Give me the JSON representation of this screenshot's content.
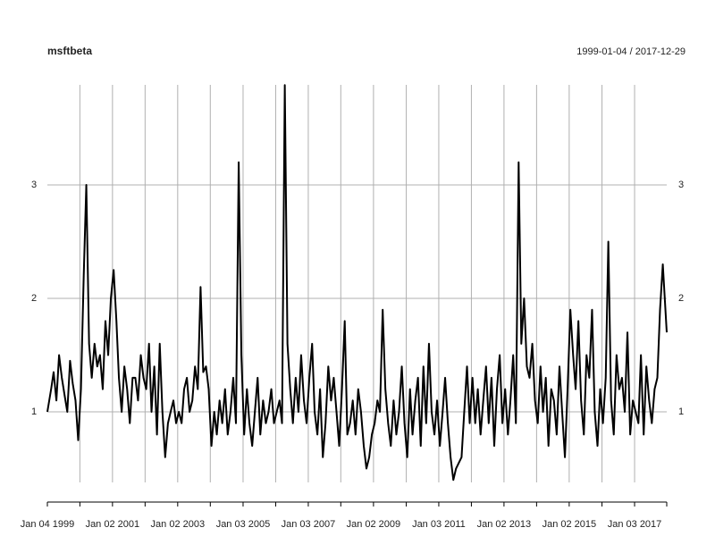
{
  "chart_data": {
    "type": "line",
    "title": "msftbeta",
    "subtitle": "1999-01-04 / 2017-12-29",
    "color": "#000000",
    "grid": true,
    "xlim": [
      "1999-01-04",
      "2017-12-29"
    ],
    "ylim": [
      0.378,
      3.882
    ],
    "yticks": [
      1,
      2,
      3
    ],
    "xticks": [
      {
        "value": "1999-01-04",
        "label": "Jan 04 1999"
      },
      {
        "value": "2000-01-03",
        "label": null
      },
      {
        "value": "2001-01-02",
        "label": "Jan 02 2001"
      },
      {
        "value": "2002-01-02",
        "label": null
      },
      {
        "value": "2003-01-02",
        "label": "Jan 02 2003"
      },
      {
        "value": "2004-01-02",
        "label": null
      },
      {
        "value": "2005-01-03",
        "label": "Jan 03 2005"
      },
      {
        "value": "2006-01-03",
        "label": null
      },
      {
        "value": "2007-01-03",
        "label": "Jan 03 2007"
      },
      {
        "value": "2008-01-02",
        "label": null
      },
      {
        "value": "2009-01-02",
        "label": "Jan 02 2009"
      },
      {
        "value": "2010-01-04",
        "label": null
      },
      {
        "value": "2011-01-03",
        "label": "Jan 03 2011"
      },
      {
        "value": "2012-01-03",
        "label": null
      },
      {
        "value": "2013-01-02",
        "label": "Jan 02 2013"
      },
      {
        "value": "2014-01-02",
        "label": null
      },
      {
        "value": "2015-01-02",
        "label": "Jan 02 2015"
      },
      {
        "value": "2016-01-04",
        "label": null
      },
      {
        "value": "2017-01-03",
        "label": "Jan 03 2017"
      }
    ],
    "x": [
      "1999-01-04",
      "1999-02-15",
      "1999-03-15",
      "1999-04-15",
      "1999-05-15",
      "1999-06-15",
      "1999-07-15",
      "1999-08-15",
      "1999-09-15",
      "1999-10-15",
      "1999-11-15",
      "1999-12-15",
      "2000-01-15",
      "2000-02-15",
      "2000-03-15",
      "2000-04-15",
      "2000-05-15",
      "2000-06-15",
      "2000-07-15",
      "2000-08-15",
      "2000-09-15",
      "2000-10-15",
      "2000-11-15",
      "2000-12-15",
      "2001-01-15",
      "2001-02-15",
      "2001-03-15",
      "2001-04-15",
      "2001-05-15",
      "2001-06-15",
      "2001-07-15",
      "2001-08-15",
      "2001-09-15",
      "2001-10-15",
      "2001-11-15",
      "2001-12-15",
      "2002-01-15",
      "2002-02-15",
      "2002-03-15",
      "2002-04-15",
      "2002-05-15",
      "2002-06-15",
      "2002-07-15",
      "2002-08-15",
      "2002-09-15",
      "2002-10-15",
      "2002-11-15",
      "2002-12-15",
      "2003-01-15",
      "2003-02-15",
      "2003-03-15",
      "2003-04-15",
      "2003-05-15",
      "2003-06-15",
      "2003-07-15",
      "2003-08-15",
      "2003-09-15",
      "2003-10-15",
      "2003-11-15",
      "2003-12-15",
      "2004-01-15",
      "2004-02-15",
      "2004-03-15",
      "2004-04-15",
      "2004-05-15",
      "2004-06-15",
      "2004-07-15",
      "2004-08-15",
      "2004-09-15",
      "2004-10-15",
      "2004-11-15",
      "2004-12-15",
      "2005-01-15",
      "2005-02-15",
      "2005-03-15",
      "2005-04-15",
      "2005-05-15",
      "2005-06-15",
      "2005-07-15",
      "2005-08-15",
      "2005-09-15",
      "2005-10-15",
      "2005-11-15",
      "2005-12-15",
      "2006-01-15",
      "2006-02-15",
      "2006-03-15",
      "2006-04-15",
      "2006-05-15",
      "2006-06-15",
      "2006-07-15",
      "2006-08-15",
      "2006-09-15",
      "2006-10-15",
      "2006-11-15",
      "2006-12-15",
      "2007-01-15",
      "2007-02-15",
      "2007-03-15",
      "2007-04-15",
      "2007-05-15",
      "2007-06-15",
      "2007-07-15",
      "2007-08-15",
      "2007-09-15",
      "2007-10-15",
      "2007-11-15",
      "2007-12-15",
      "2008-01-15",
      "2008-02-15",
      "2008-03-15",
      "2008-04-15",
      "2008-05-15",
      "2008-06-15",
      "2008-07-15",
      "2008-08-15",
      "2008-09-15",
      "2008-10-15",
      "2008-11-15",
      "2008-12-15",
      "2009-01-15",
      "2009-02-15",
      "2009-03-15",
      "2009-04-15",
      "2009-05-15",
      "2009-06-15",
      "2009-07-15",
      "2009-08-15",
      "2009-09-15",
      "2009-10-15",
      "2009-11-15",
      "2009-12-15",
      "2010-01-15",
      "2010-02-15",
      "2010-03-15",
      "2010-04-15",
      "2010-05-15",
      "2010-06-15",
      "2010-07-15",
      "2010-08-15",
      "2010-09-15",
      "2010-10-15",
      "2010-11-15",
      "2010-12-15",
      "2011-01-15",
      "2011-02-15",
      "2011-03-15",
      "2011-04-15",
      "2011-05-15",
      "2011-06-15",
      "2011-07-15",
      "2011-08-15",
      "2011-09-15",
      "2011-10-15",
      "2011-11-15",
      "2011-12-15",
      "2012-01-15",
      "2012-02-15",
      "2012-03-15",
      "2012-04-15",
      "2012-05-15",
      "2012-06-15",
      "2012-07-15",
      "2012-08-15",
      "2012-09-15",
      "2012-10-15",
      "2012-11-15",
      "2012-12-15",
      "2013-01-15",
      "2013-02-15",
      "2013-03-15",
      "2013-04-15",
      "2013-05-15",
      "2013-06-15",
      "2013-07-15",
      "2013-08-15",
      "2013-09-15",
      "2013-10-15",
      "2013-11-15",
      "2013-12-15",
      "2014-01-15",
      "2014-02-15",
      "2014-03-15",
      "2014-04-15",
      "2014-05-15",
      "2014-06-15",
      "2014-07-15",
      "2014-08-15",
      "2014-09-15",
      "2014-10-15",
      "2014-11-15",
      "2014-12-15",
      "2015-01-15",
      "2015-02-15",
      "2015-03-15",
      "2015-04-15",
      "2015-05-15",
      "2015-06-15",
      "2015-07-15",
      "2015-08-15",
      "2015-09-15",
      "2015-10-15",
      "2015-11-15",
      "2015-12-15",
      "2016-01-15",
      "2016-02-15",
      "2016-03-15",
      "2016-04-15",
      "2016-05-15",
      "2016-06-15",
      "2016-07-15",
      "2016-08-15",
      "2016-09-15",
      "2016-10-15",
      "2016-11-15",
      "2016-12-15",
      "2017-01-15",
      "2017-02-15",
      "2017-03-15",
      "2017-04-15",
      "2017-05-15",
      "2017-06-15",
      "2017-07-15",
      "2017-08-15",
      "2017-09-15",
      "2017-10-15",
      "2017-11-15",
      "2017-12-29"
    ],
    "values": [
      1.0,
      1.2,
      1.35,
      1.1,
      1.5,
      1.3,
      1.15,
      1.0,
      1.45,
      1.25,
      1.1,
      0.75,
      1.2,
      2.2,
      3.0,
      1.6,
      1.3,
      1.6,
      1.4,
      1.5,
      1.2,
      1.8,
      1.5,
      2.0,
      2.25,
      1.8,
      1.3,
      1.0,
      1.4,
      1.2,
      0.9,
      1.3,
      1.3,
      1.1,
      1.5,
      1.3,
      1.2,
      1.6,
      1.0,
      1.4,
      0.8,
      1.6,
      1.0,
      0.6,
      0.9,
      1.0,
      1.1,
      0.9,
      1.0,
      0.9,
      1.2,
      1.3,
      1.0,
      1.1,
      1.4,
      1.2,
      2.1,
      1.35,
      1.4,
      1.2,
      0.7,
      1.0,
      0.8,
      1.1,
      0.9,
      1.2,
      0.8,
      1.0,
      1.3,
      0.9,
      3.2,
      1.5,
      0.8,
      1.2,
      0.9,
      0.7,
      1.0,
      1.3,
      0.8,
      1.1,
      0.9,
      1.0,
      1.2,
      0.9,
      1.0,
      1.1,
      0.9,
      3.88,
      1.6,
      1.2,
      0.9,
      1.3,
      1.0,
      1.5,
      1.1,
      0.9,
      1.3,
      1.6,
      1.0,
      0.8,
      1.2,
      0.6,
      0.9,
      1.4,
      1.1,
      1.3,
      1.0,
      0.7,
      1.2,
      1.8,
      0.8,
      0.9,
      1.1,
      0.8,
      1.2,
      1.0,
      0.7,
      0.5,
      0.6,
      0.8,
      0.9,
      1.1,
      1.0,
      1.9,
      1.2,
      0.9,
      0.7,
      1.1,
      0.8,
      1.0,
      1.4,
      0.9,
      0.6,
      1.2,
      0.8,
      1.1,
      1.3,
      0.7,
      1.4,
      0.9,
      1.6,
      1.0,
      0.8,
      1.1,
      0.7,
      1.0,
      1.3,
      0.9,
      0.6,
      0.4,
      0.5,
      0.55,
      0.6,
      1.0,
      1.4,
      0.9,
      1.3,
      0.9,
      1.2,
      0.8,
      1.1,
      1.4,
      0.9,
      1.3,
      0.7,
      1.2,
      1.5,
      0.9,
      1.2,
      0.8,
      1.1,
      1.5,
      0.9,
      3.2,
      1.6,
      2.0,
      1.4,
      1.3,
      1.6,
      1.1,
      0.9,
      1.4,
      1.0,
      1.3,
      0.7,
      1.2,
      1.1,
      0.8,
      1.4,
      1.0,
      0.6,
      1.2,
      1.9,
      1.5,
      1.2,
      1.8,
      1.1,
      0.8,
      1.5,
      1.3,
      1.9,
      1.0,
      0.7,
      1.2,
      0.9,
      1.3,
      2.5,
      1.1,
      0.8,
      1.5,
      1.2,
      1.3,
      1.0,
      1.7,
      0.8,
      1.1,
      1.0,
      0.9,
      1.5,
      0.8,
      1.4,
      1.1,
      0.9,
      1.2,
      1.3,
      1.9,
      2.3,
      1.7
    ]
  }
}
